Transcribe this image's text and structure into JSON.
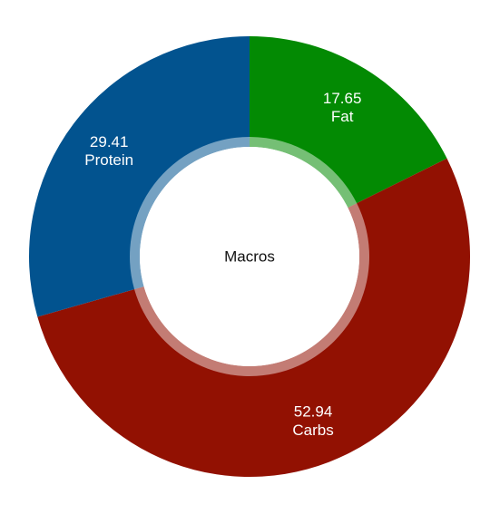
{
  "chart_data": {
    "type": "pie",
    "title": "",
    "center_label": "Macros",
    "slices": [
      {
        "name": "Fat",
        "value": 17.65,
        "color": "#038A03"
      },
      {
        "name": "Carbs",
        "value": 52.94,
        "color": "#921102"
      },
      {
        "name": "Protein",
        "value": 29.41,
        "color": "#02538F"
      }
    ],
    "legend": "none"
  }
}
